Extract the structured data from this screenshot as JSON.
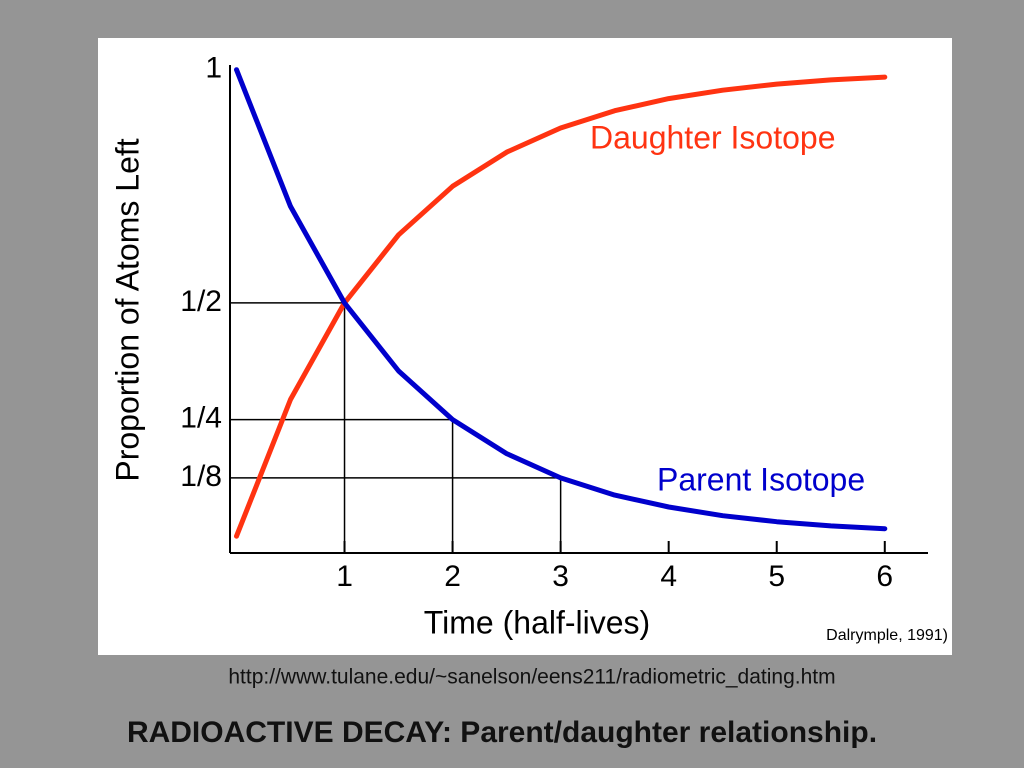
{
  "chart_data": {
    "type": "line",
    "title": "RADIOACTIVE DECAY: Parent/daughter relationship.",
    "source_url": "http://www.tulane.edu/~sanelson/eens211/radiometric_dating.htm",
    "credit": "Dalrymple, 1991)",
    "x_label": "Time (half-lives)",
    "y_label": "Proportion of Atoms Left",
    "x": [
      0,
      0.5,
      1,
      1.5,
      2,
      2.5,
      3,
      3.5,
      4,
      4.5,
      5,
      5.5,
      6
    ],
    "series": [
      {
        "name": "Daughter Isotope",
        "color": "#ff3311",
        "values": [
          0,
          0.293,
          0.5,
          0.646,
          0.75,
          0.823,
          0.875,
          0.912,
          0.938,
          0.956,
          0.969,
          0.978,
          0.984
        ]
      },
      {
        "name": "Parent Isotope",
        "color": "#0000cc",
        "values": [
          1,
          0.707,
          0.5,
          0.354,
          0.25,
          0.177,
          0.125,
          0.088,
          0.0625,
          0.044,
          0.031,
          0.022,
          0.016
        ]
      }
    ],
    "xlim": [
      -0.06,
      6.4
    ],
    "ylim": [
      -0.036,
      1.01
    ],
    "xticks": [
      1,
      2,
      3,
      4,
      5,
      6
    ],
    "yticks": [
      {
        "value": 0.125,
        "label": "1/8"
      },
      {
        "value": 0.25,
        "label": "1/4"
      },
      {
        "value": 0.5,
        "label": "1/2"
      },
      1
    ]
  }
}
